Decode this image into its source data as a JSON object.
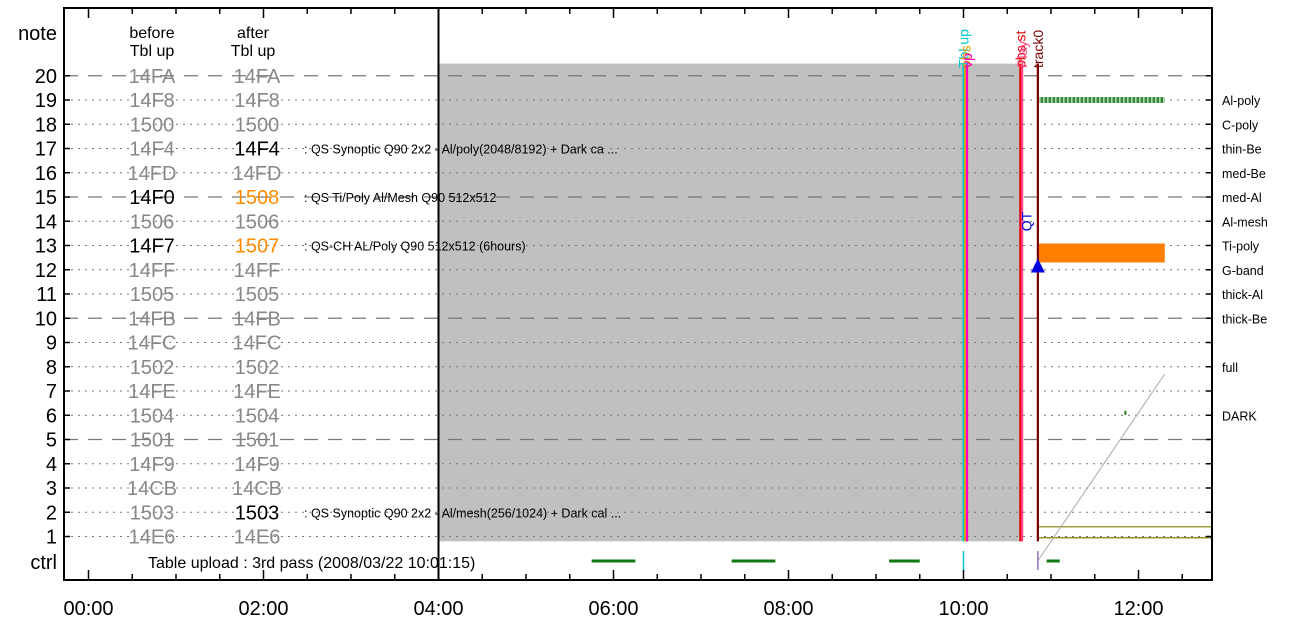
{
  "chart_data": {
    "type": "timeline",
    "title": "",
    "y_label": "note",
    "ctrl_label": "ctrl",
    "col_before": [
      "before",
      "Tbl up"
    ],
    "col_after": [
      "after",
      "Tbl up"
    ],
    "x_range_hours": [
      0,
      12.3
    ],
    "x_ticks": [
      "00:00",
      "02:00",
      "04:00",
      "06:00",
      "08:00",
      "10:00",
      "12:00"
    ],
    "y_range": [
      1,
      20
    ],
    "rows": [
      {
        "note": 20,
        "before": "14FA",
        "after": "14FA",
        "style": "dash"
      },
      {
        "note": 19,
        "before": "14F8",
        "after": "14F8",
        "style": "dot"
      },
      {
        "note": 18,
        "before": "1500",
        "after": "1500",
        "style": "dot"
      },
      {
        "note": 17,
        "before": "14F4",
        "after": "14F4",
        "after_color": "black",
        "style": "dot",
        "desc": ": QS Synoptic Q90 2x2 - Al/poly(2048/8192) + Dark ca ..."
      },
      {
        "note": 16,
        "before": "14FD",
        "after": "14FD",
        "style": "dot"
      },
      {
        "note": 15,
        "before": "14F0",
        "before_color": "black",
        "after": "1508",
        "after_color": "orange",
        "style": "dash",
        "desc": ": QS Ti/Poly Al/Mesh  Q90 512x512"
      },
      {
        "note": 14,
        "before": "1506",
        "after": "1506",
        "style": "dot"
      },
      {
        "note": 13,
        "before": "14F7",
        "before_color": "black",
        "after": "1507",
        "after_color": "orange",
        "style": "dot",
        "desc": ": QS-CH AL/Poly  Q90 512x512 (6hours)"
      },
      {
        "note": 12,
        "before": "14FF",
        "after": "14FF",
        "style": "dot"
      },
      {
        "note": 11,
        "before": "1505",
        "after": "1505",
        "style": "dot"
      },
      {
        "note": 10,
        "before": "14FB",
        "after": "14FB",
        "style": "dash"
      },
      {
        "note": 9,
        "before": "14FC",
        "after": "14FC",
        "style": "dot"
      },
      {
        "note": 8,
        "before": "1502",
        "after": "1502",
        "style": "dot"
      },
      {
        "note": 7,
        "before": "14FE",
        "after": "14FE",
        "style": "dot"
      },
      {
        "note": 6,
        "before": "1504",
        "after": "1504",
        "style": "dot"
      },
      {
        "note": 5,
        "before": "1501",
        "after": "1501",
        "style": "dash"
      },
      {
        "note": 4,
        "before": "14F9",
        "after": "14F9",
        "style": "dot"
      },
      {
        "note": 3,
        "before": "14CB",
        "after": "14CB",
        "style": "dot"
      },
      {
        "note": 2,
        "before": "1503",
        "after": "1503",
        "after_color": "black",
        "style": "dot",
        "desc": ": QS Synoptic Q90 2x2 - Al/mesh(256/1024) + Dark cal ..."
      },
      {
        "note": 1,
        "before": "14E6",
        "after": "14E6",
        "style": "dot"
      }
    ],
    "filters": [
      {
        "label": "Al-poly",
        "note": 19
      },
      {
        "label": "C-poly",
        "note": 18
      },
      {
        "label": "thin-Be",
        "note": 17
      },
      {
        "label": "med-Be",
        "note": 16
      },
      {
        "label": "med-Al",
        "note": 15
      },
      {
        "label": "Al-mesh",
        "note": 14
      },
      {
        "label": "Ti-poly",
        "note": 13
      },
      {
        "label": "G-band",
        "note": 12
      },
      {
        "label": "thick-Al",
        "note": 11
      },
      {
        "label": "thick-Be",
        "note": 10
      },
      {
        "label": "full",
        "note": 8
      },
      {
        "label": "DARK",
        "note": 6
      }
    ],
    "ctrl_text": "Table upload : 3rd pass (2008/03/22 10:01:15)",
    "gray_region": {
      "start": 4.0,
      "end": 10.65,
      "note_top": 20.5,
      "note_bottom": 0.8
    },
    "markers": [
      {
        "t": 10.0,
        "color": "#00c8c8",
        "label": "Tbl up"
      },
      {
        "t": 10.02,
        "color": "#e8a000",
        "label": "obs"
      },
      {
        "t": 10.04,
        "color": "#ff00c0",
        "label": "vp"
      },
      {
        "t": 10.65,
        "color": "#e60000",
        "label": "obs st"
      },
      {
        "t": 10.67,
        "color": "#ff4080",
        "label": "Play"
      },
      {
        "t": 10.85,
        "color": "#7a0000",
        "label": "track0"
      }
    ],
    "qt_label": {
      "t": 10.72,
      "note": 14,
      "text": "QT",
      "color": "#0000dd"
    },
    "triangle": {
      "t": 10.85,
      "note": 12.3,
      "color": "#0000dd"
    },
    "bars": [
      {
        "start": 10.85,
        "end": 12.3,
        "note_top": 13.0,
        "note_bottom": 12.3,
        "color": "#ff8000",
        "kind": "solid"
      },
      {
        "start": 10.85,
        "end": 12.3,
        "note": 19.0,
        "color": "#208020",
        "kind": "hatched"
      }
    ],
    "ctrl_segments": [
      {
        "start": 5.75,
        "end": 6.25,
        "color": "#107810"
      },
      {
        "start": 7.35,
        "end": 7.85,
        "color": "#107810"
      },
      {
        "start": 9.15,
        "end": 9.5,
        "color": "#107810"
      },
      {
        "start": 10.95,
        "end": 11.1,
        "color": "#107810"
      }
    ],
    "ctrl_ticks": [
      {
        "t": 10.0,
        "color": "#00c8c8"
      },
      {
        "t": 10.85,
        "color": "#9a70c0"
      }
    ],
    "olive_lines": [
      1.4,
      0.95
    ],
    "gray_diagonal": {
      "t0": 10.85,
      "n0": 0.0,
      "t1": 12.3,
      "n1": 7.7
    },
    "dark_mark": {
      "t": 11.85,
      "note": 6.1,
      "color": "#208020"
    }
  }
}
